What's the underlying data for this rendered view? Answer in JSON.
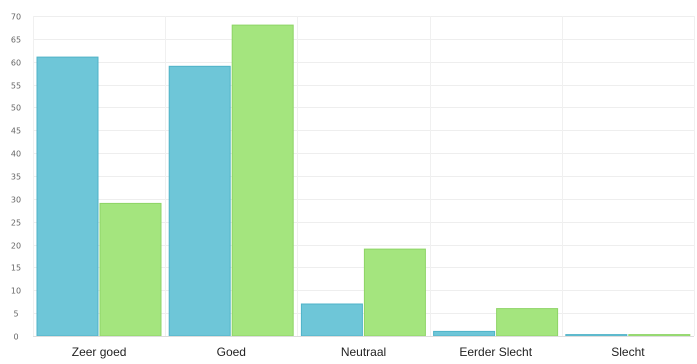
{
  "chart_data": {
    "type": "bar",
    "title": "",
    "xlabel": "",
    "ylabel": "",
    "categories": [
      "Zeer goed",
      "Goed",
      "Neutraal",
      "Eerder Slecht",
      "Slecht"
    ],
    "series": [
      {
        "values": [
          61,
          59,
          7,
          1,
          0.3
        ],
        "color": "#6ec6d8",
        "border": "#4fb3c8"
      },
      {
        "values": [
          29,
          68,
          19,
          6,
          0.3
        ],
        "color": "#a4e57e",
        "border": "#8ed466"
      }
    ],
    "ylim": [
      0,
      70
    ],
    "yticks": [
      0,
      5,
      10,
      15,
      20,
      25,
      30,
      35,
      40,
      45,
      50,
      55,
      60,
      65,
      70
    ],
    "grid": true,
    "legend": "none"
  }
}
